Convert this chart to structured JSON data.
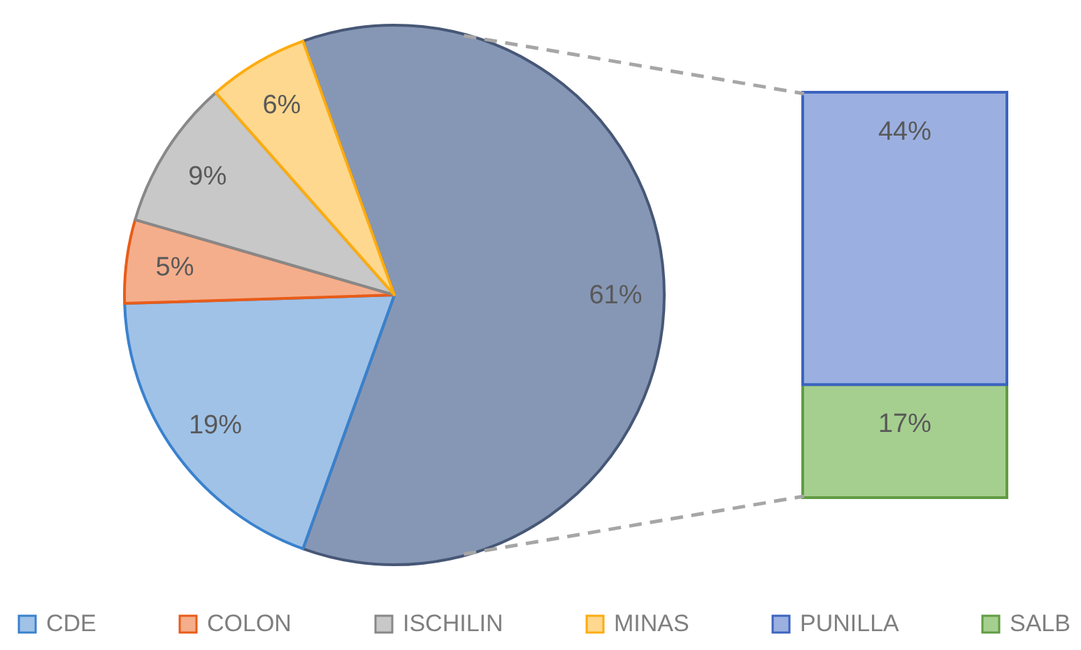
{
  "chart_data": [
    {
      "type": "pie",
      "categories": [
        null,
        "CDE",
        "COLON",
        "ISCHILIN",
        "MINAS"
      ],
      "values": [
        61,
        19,
        5,
        9,
        6
      ],
      "colors": [
        "#8697b6",
        "#a0c2e7",
        "#f4ae8c",
        "#c8c8c8",
        "#fed88e"
      ],
      "value_labels": [
        "61%",
        "19%",
        "5%",
        "9%",
        "6%"
      ],
      "legend": "bottom"
    },
    {
      "type": "bar",
      "stacked": true,
      "categories": [
        null
      ],
      "series": [
        {
          "name": "SALB",
          "color": "#a5cf8f",
          "values": [
            17
          ],
          "value_labels": [
            "17%"
          ]
        },
        {
          "name": "PUNILLA",
          "color": "#9bb0e0",
          "values": [
            44
          ],
          "value_labels": [
            "44%"
          ]
        }
      ],
      "legend": "bottom"
    }
  ]
}
